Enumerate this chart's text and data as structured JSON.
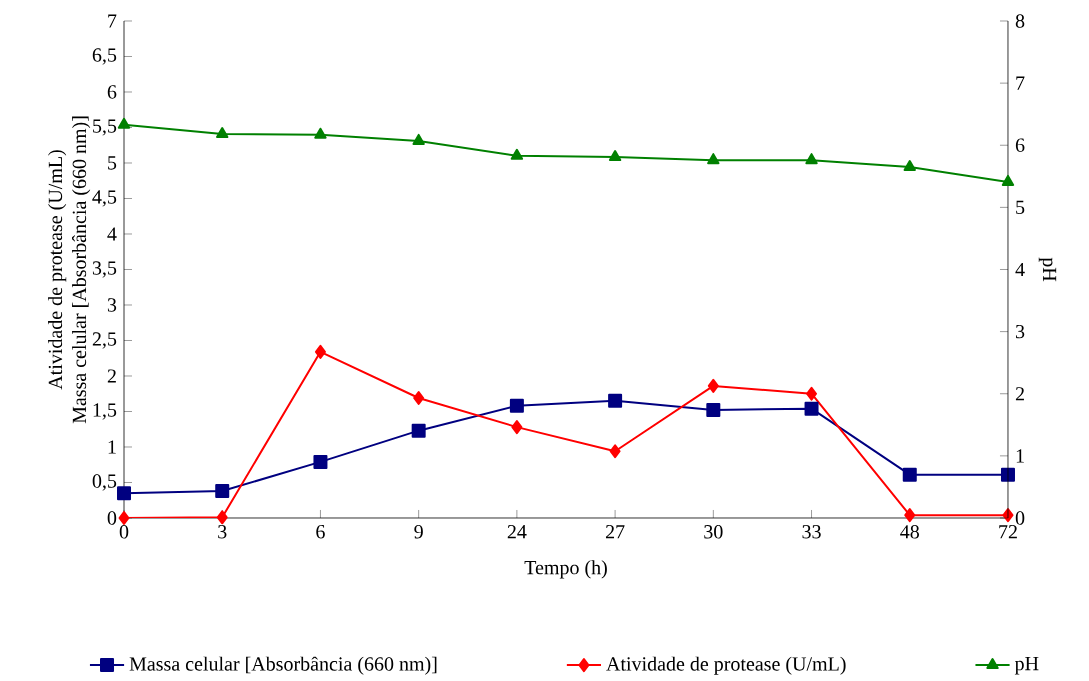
{
  "chart_data": {
    "type": "line",
    "xlabel": "Tempo (h)",
    "ylabel": [
      "Atividade de protease (U/mL)",
      "Massa celular [Absorbância (660 nm)]"
    ],
    "y2label": "pH",
    "categories": [
      "0",
      "3",
      "6",
      "9",
      "24",
      "27",
      "30",
      "33",
      "48",
      "72"
    ],
    "series": [
      {
        "name": "Massa celular [Absorbância (660 nm)]",
        "color": "#000080",
        "marker": "square",
        "values": [
          0.35,
          0.38,
          0.79,
          1.23,
          1.58,
          1.65,
          1.52,
          1.54,
          0.61,
          0.61
        ]
      },
      {
        "name": "Atividade de protease (U/mL)",
        "color": "#ff0000",
        "marker": "diamond",
        "values": [
          0,
          0.01,
          2.34,
          1.69,
          1.28,
          0.94,
          1.86,
          1.75,
          0.04,
          0.04
        ]
      },
      {
        "name": "pH",
        "color": "#008000",
        "marker": "triangle",
        "axis": "y2",
        "values": [
          6.33,
          6.18,
          6.17,
          6.07,
          5.83,
          5.81,
          5.76,
          5.76,
          5.65,
          5.41
        ]
      }
    ],
    "ylim": [
      0,
      7
    ],
    "yticks": [
      0,
      {
        "value": 0.5,
        "label": "0,5"
      },
      1,
      {
        "value": 1.5,
        "label": "1,5"
      },
      2,
      {
        "value": 2.5,
        "label": "2,5"
      },
      3,
      {
        "value": 3.5,
        "label": "3,5"
      },
      4,
      {
        "value": 4.5,
        "label": "4,5"
      },
      5,
      {
        "value": 5.5,
        "label": "5,5"
      },
      6,
      {
        "value": 6.5,
        "label": "6,5"
      },
      7
    ],
    "y2lim": [
      0,
      8
    ],
    "y2ticks": [
      0,
      1,
      2,
      3,
      4,
      5,
      6,
      7,
      8
    ],
    "grid": false,
    "legend": "bottom"
  }
}
